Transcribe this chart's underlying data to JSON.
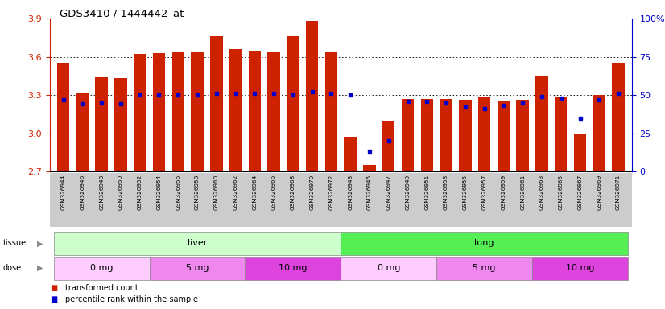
{
  "title": "GDS3410 / 1444442_at",
  "samples": [
    "GSM326944",
    "GSM326946",
    "GSM326948",
    "GSM326950",
    "GSM326952",
    "GSM326954",
    "GSM326956",
    "GSM326958",
    "GSM326960",
    "GSM326962",
    "GSM326964",
    "GSM326966",
    "GSM326968",
    "GSM326970",
    "GSM326972",
    "GSM326943",
    "GSM326945",
    "GSM326947",
    "GSM326949",
    "GSM326951",
    "GSM326953",
    "GSM326955",
    "GSM326957",
    "GSM326959",
    "GSM326961",
    "GSM326963",
    "GSM326965",
    "GSM326967",
    "GSM326969",
    "GSM326971"
  ],
  "transformed_count": [
    3.55,
    3.32,
    3.44,
    3.43,
    3.62,
    3.63,
    3.64,
    3.64,
    3.76,
    3.66,
    3.65,
    3.64,
    3.76,
    3.88,
    3.64,
    2.97,
    2.75,
    3.1,
    3.27,
    3.27,
    3.27,
    3.26,
    3.28,
    3.25,
    3.26,
    3.45,
    3.28,
    3.0,
    3.3,
    3.55
  ],
  "percentile_rank": [
    47,
    44,
    45,
    44,
    50,
    50,
    50,
    50,
    51,
    51,
    51,
    51,
    50,
    52,
    51,
    50,
    13,
    20,
    46,
    46,
    45,
    42,
    41,
    43,
    45,
    49,
    48,
    35,
    47,
    51
  ],
  "ylim_left": [
    2.7,
    3.9
  ],
  "ylim_right": [
    0,
    100
  ],
  "yticks_left": [
    2.7,
    3.0,
    3.3,
    3.6,
    3.9
  ],
  "yticks_right": [
    0,
    25,
    50,
    75,
    100
  ],
  "ytick_labels_right": [
    "0",
    "25",
    "50",
    "75",
    "100%"
  ],
  "bar_color": "#cc2200",
  "dot_color": "#0000cc",
  "tissue_groups": [
    {
      "label": "liver",
      "start": 0,
      "end": 14,
      "color": "#ccffcc"
    },
    {
      "label": "lung",
      "start": 15,
      "end": 29,
      "color": "#55ee55"
    }
  ],
  "dose_groups": [
    {
      "label": "0 mg",
      "start": 0,
      "end": 4,
      "color": "#ffccff"
    },
    {
      "label": "5 mg",
      "start": 5,
      "end": 9,
      "color": "#ee88ee"
    },
    {
      "label": "10 mg",
      "start": 10,
      "end": 14,
      "color": "#dd44dd"
    },
    {
      "label": "0 mg",
      "start": 15,
      "end": 19,
      "color": "#ffccff"
    },
    {
      "label": "5 mg",
      "start": 20,
      "end": 24,
      "color": "#ee88ee"
    },
    {
      "label": "10 mg",
      "start": 25,
      "end": 29,
      "color": "#dd44dd"
    }
  ],
  "xtick_bg": "#cccccc",
  "legend_items": [
    {
      "label": "transformed count",
      "color": "#cc2200"
    },
    {
      "label": "percentile rank within the sample",
      "color": "#0000cc"
    }
  ]
}
